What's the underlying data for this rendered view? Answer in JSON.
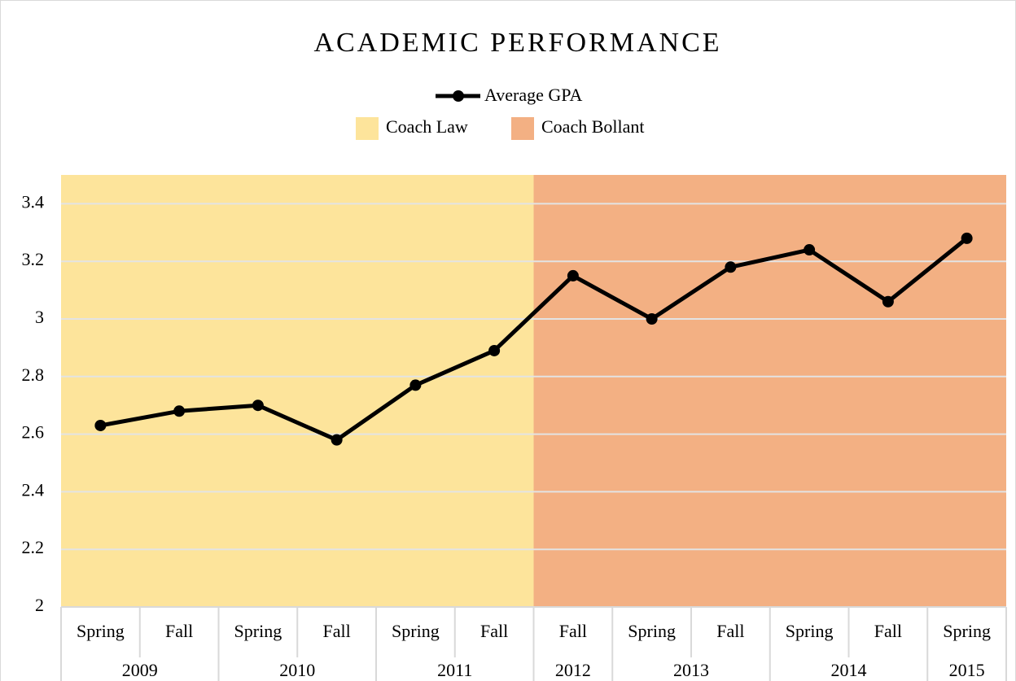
{
  "chart_data": {
    "type": "line",
    "title": "ACADEMIC PERFORMANCE",
    "categories": [
      "Spring",
      "Fall",
      "Spring",
      "Fall",
      "Spring",
      "Fall",
      "Fall",
      "Spring",
      "Fall",
      "Spring",
      "Fall",
      "Spring"
    ],
    "x_groups": [
      {
        "label": "2009",
        "count": 2
      },
      {
        "label": "2010",
        "count": 2
      },
      {
        "label": "2011",
        "count": 2
      },
      {
        "label": "2012",
        "count": 1
      },
      {
        "label": "2013",
        "count": 2
      },
      {
        "label": "2014",
        "count": 2
      },
      {
        "label": "2015",
        "count": 1
      }
    ],
    "series": [
      {
        "name": "Average GPA",
        "color": "#000000",
        "values": [
          2.63,
          2.68,
          2.7,
          2.58,
          2.77,
          2.89,
          3.15,
          3.0,
          3.18,
          3.24,
          3.06,
          3.28
        ]
      }
    ],
    "periods": [
      {
        "name": "Coach Law",
        "color": "#fde49b",
        "count": 6
      },
      {
        "name": "Coach Bollant",
        "color": "#f3b083",
        "count": 6
      }
    ],
    "ylim": [
      2,
      3.5
    ],
    "yticks": [
      2,
      2.2,
      2.4,
      2.6,
      2.8,
      3,
      3.2,
      3.4
    ],
    "grid": true
  }
}
